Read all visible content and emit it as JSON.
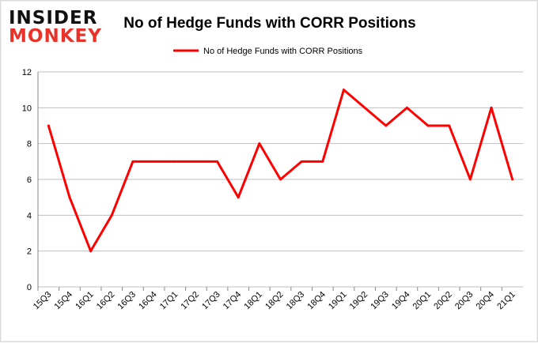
{
  "logo": {
    "line1": "INSIDER",
    "line2": "MONKEY"
  },
  "chart_data": {
    "type": "line",
    "title": "No of Hedge Funds with CORR Positions",
    "legend": "No of Hedge Funds with CORR Positions",
    "legend_position": "top",
    "categories": [
      "15Q3",
      "15Q4",
      "16Q1",
      "16Q2",
      "16Q3",
      "16Q4",
      "17Q1",
      "17Q2",
      "17Q3",
      "17Q4",
      "18Q1",
      "18Q2",
      "18Q3",
      "18Q4",
      "19Q1",
      "19Q2",
      "19Q3",
      "19Q4",
      "20Q1",
      "20Q2",
      "20Q3",
      "20Q4",
      "21Q1"
    ],
    "series": [
      {
        "name": "No of Hedge Funds with CORR Positions",
        "values": [
          9,
          5,
          2,
          4,
          7,
          7,
          7,
          7,
          7,
          5,
          8,
          6,
          7,
          7,
          11,
          10,
          9,
          10,
          9,
          9,
          6,
          10,
          6
        ],
        "color": "#ff0000"
      }
    ],
    "ylim": [
      0,
      12
    ],
    "yticks": [
      0,
      2,
      4,
      6,
      8,
      10,
      12
    ],
    "grid": true,
    "xlabel": "",
    "ylabel": ""
  }
}
